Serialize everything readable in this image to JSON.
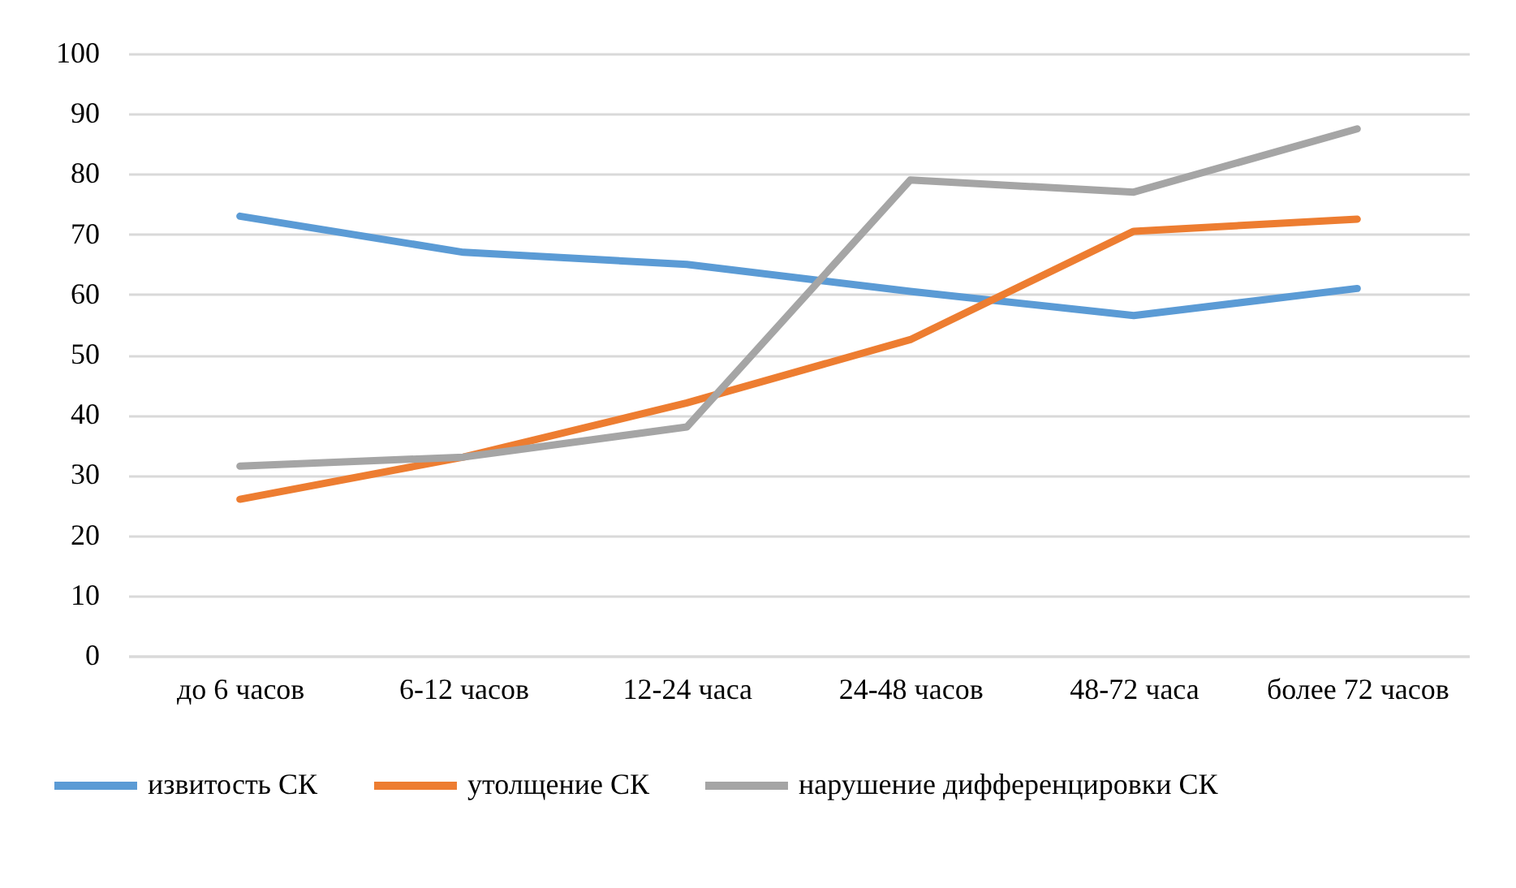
{
  "chart_data": {
    "type": "line",
    "categories": [
      "до 6 часов",
      "6-12 часов",
      "12-24 часа",
      "24-48 часов",
      "48-72 часа",
      "более 72 часов"
    ],
    "series": [
      {
        "name": "извитость СК",
        "color": "#5b9bd5",
        "values": [
          73,
          67,
          65,
          60.5,
          56.5,
          61
        ]
      },
      {
        "name": "утолщение СК",
        "color": "#ed7d31",
        "values": [
          26,
          33,
          42,
          52.5,
          70.5,
          72.5
        ]
      },
      {
        "name": "нарушение дифференцировки СК",
        "color": "#a5a5a5",
        "values": [
          31.5,
          33,
          38,
          79,
          77,
          87.5
        ]
      }
    ],
    "ylim": [
      0,
      100
    ],
    "yticks": [
      0,
      10,
      20,
      30,
      40,
      50,
      60,
      70,
      80,
      90,
      100
    ],
    "grid": "y",
    "legend": "bottom",
    "line_style": "solid"
  }
}
